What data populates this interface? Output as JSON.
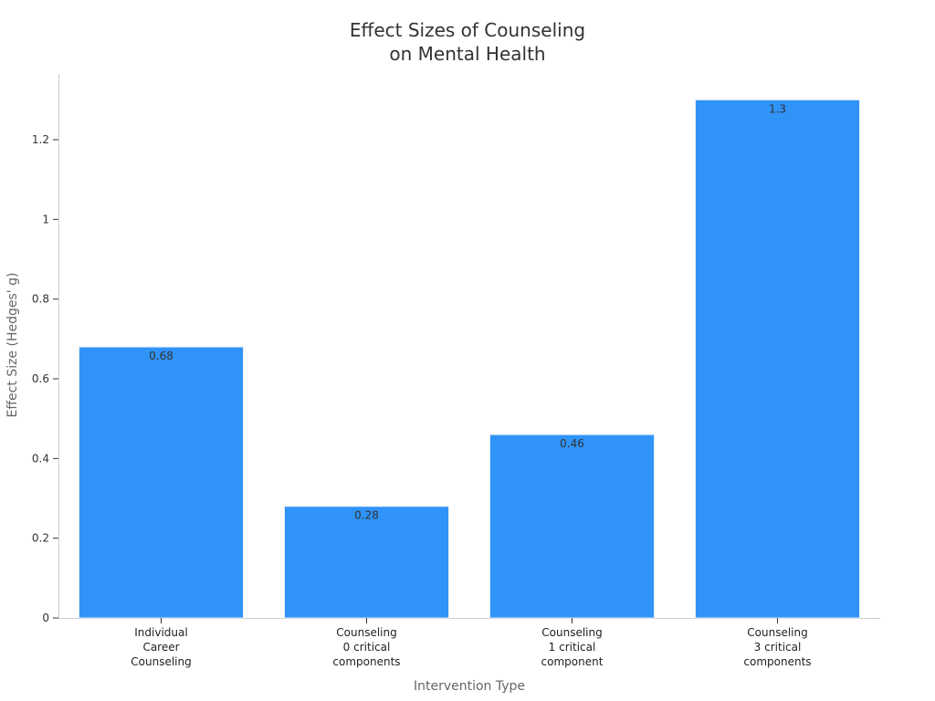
{
  "chart_data": {
    "type": "bar",
    "title_lines": [
      "Effect Sizes of Counseling",
      "on Mental Health"
    ],
    "xlabel": "Intervention Type",
    "ylabel": "Effect Size (Hedges' g)",
    "categories": [
      [
        "Individual",
        "Career",
        "Counseling"
      ],
      [
        "Counseling",
        "0 critical",
        "components"
      ],
      [
        "Counseling",
        "1 critical",
        "component"
      ],
      [
        "Counseling",
        "3 critical",
        "components"
      ]
    ],
    "values": [
      0.68,
      0.28,
      0.46,
      1.3
    ],
    "data_labels": [
      "0.68",
      "0.28",
      "0.46",
      "1.3"
    ],
    "ylim": [
      0,
      1.365
    ],
    "yticks": [
      0,
      0.2,
      0.4,
      0.6,
      0.8,
      1,
      1.2
    ],
    "ytick_labels": [
      "0",
      "0.2",
      "0.4",
      "0.6",
      "0.8",
      "1",
      "1.2"
    ],
    "bar_color": "#2f93f8",
    "bar_edge_color": "#e6f0fb",
    "grid": false,
    "legend": "none"
  }
}
